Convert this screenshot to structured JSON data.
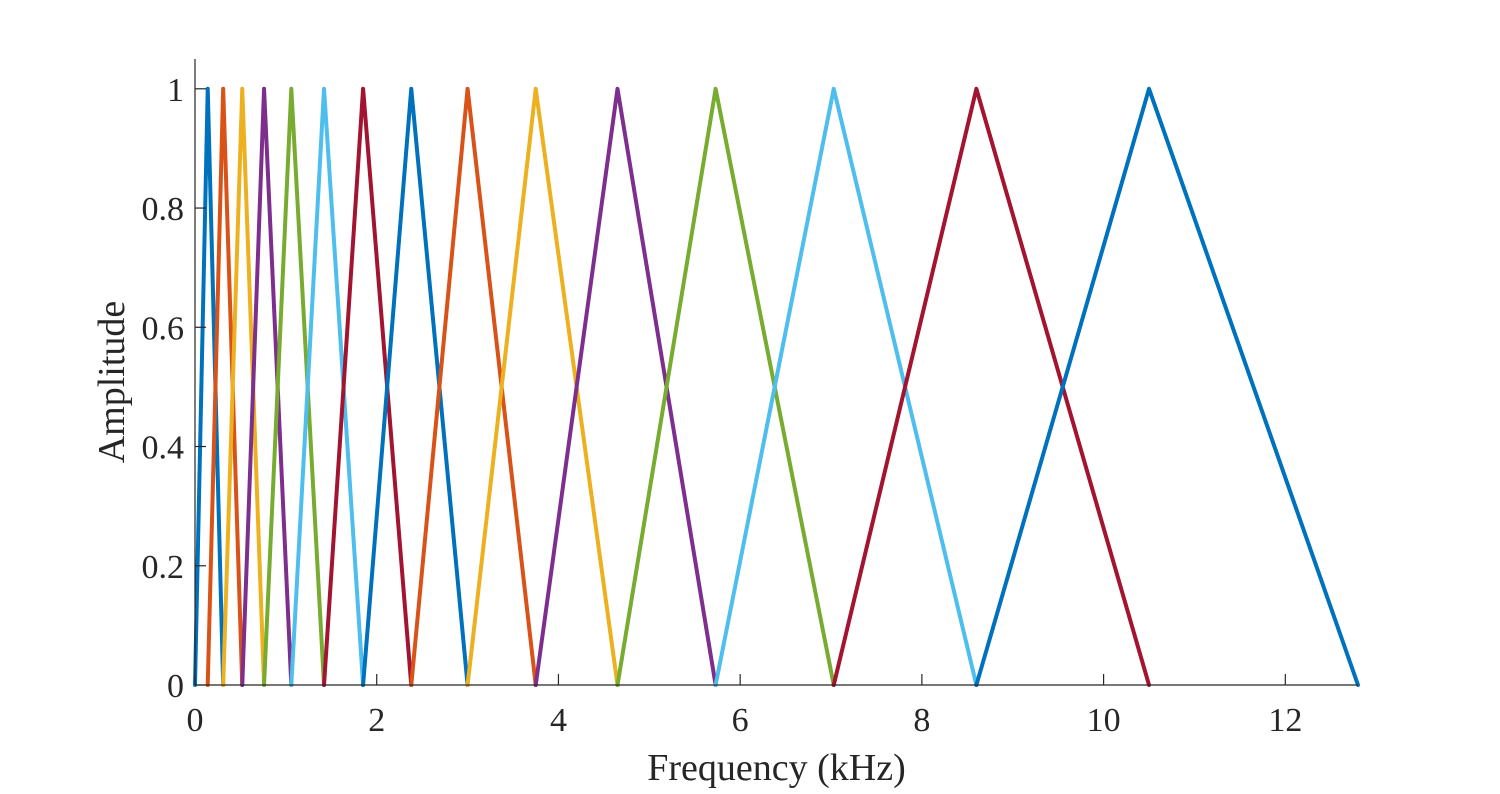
{
  "chart_data": {
    "type": "line",
    "title": "",
    "xlabel": "Frequency (kHz)",
    "ylabel": "Amplitude",
    "xlim": [
      0,
      12.8
    ],
    "ylim": [
      0,
      1.05
    ],
    "xticks": [
      0,
      2,
      4,
      6,
      8,
      10,
      12
    ],
    "xtick_labels": [
      "0",
      "2",
      "4",
      "6",
      "8",
      "10",
      "12"
    ],
    "yticks": [
      0,
      0.2,
      0.4,
      0.6,
      0.8,
      1
    ],
    "ytick_labels": [
      "0",
      "0.2",
      "0.4",
      "0.6",
      "0.8",
      "1"
    ],
    "grid": false,
    "legend": "none",
    "filter_edges_khz": [
      0,
      0.14,
      0.31,
      0.52,
      0.76,
      1.06,
      1.42,
      1.85,
      2.38,
      3.0,
      3.75,
      4.65,
      5.73,
      7.03,
      8.6,
      10.5,
      12.8
    ],
    "series": [
      {
        "x": [
          0,
          0.14,
          0.31
        ],
        "y": [
          0,
          1,
          0
        ],
        "color": "#0072BD"
      },
      {
        "x": [
          0.14,
          0.31,
          0.52
        ],
        "y": [
          0,
          1,
          0
        ],
        "color": "#D95319"
      },
      {
        "x": [
          0.31,
          0.52,
          0.76
        ],
        "y": [
          0,
          1,
          0
        ],
        "color": "#EDB120"
      },
      {
        "x": [
          0.52,
          0.76,
          1.06
        ],
        "y": [
          0,
          1,
          0
        ],
        "color": "#7E2F8E"
      },
      {
        "x": [
          0.76,
          1.06,
          1.42
        ],
        "y": [
          0,
          1,
          0
        ],
        "color": "#77AC30"
      },
      {
        "x": [
          1.06,
          1.42,
          1.85
        ],
        "y": [
          0,
          1,
          0
        ],
        "color": "#4DBEEE"
      },
      {
        "x": [
          1.42,
          1.85,
          2.38
        ],
        "y": [
          0,
          1,
          0
        ],
        "color": "#A2142F"
      },
      {
        "x": [
          1.85,
          2.38,
          3.0
        ],
        "y": [
          0,
          1,
          0
        ],
        "color": "#0072BD"
      },
      {
        "x": [
          2.38,
          3.0,
          3.75
        ],
        "y": [
          0,
          1,
          0
        ],
        "color": "#D95319"
      },
      {
        "x": [
          3.0,
          3.75,
          4.65
        ],
        "y": [
          0,
          1,
          0
        ],
        "color": "#EDB120"
      },
      {
        "x": [
          3.75,
          4.65,
          5.73
        ],
        "y": [
          0,
          1,
          0
        ],
        "color": "#7E2F8E"
      },
      {
        "x": [
          4.65,
          5.73,
          7.03
        ],
        "y": [
          0,
          1,
          0
        ],
        "color": "#77AC30"
      },
      {
        "x": [
          5.73,
          7.03,
          8.6
        ],
        "y": [
          0,
          1,
          0
        ],
        "color": "#4DBEEE"
      },
      {
        "x": [
          7.03,
          8.6,
          10.5
        ],
        "y": [
          0,
          1,
          0
        ],
        "color": "#A2142F"
      },
      {
        "x": [
          8.6,
          10.5,
          12.8
        ],
        "y": [
          0,
          1,
          0
        ],
        "color": "#0072BD"
      }
    ]
  }
}
